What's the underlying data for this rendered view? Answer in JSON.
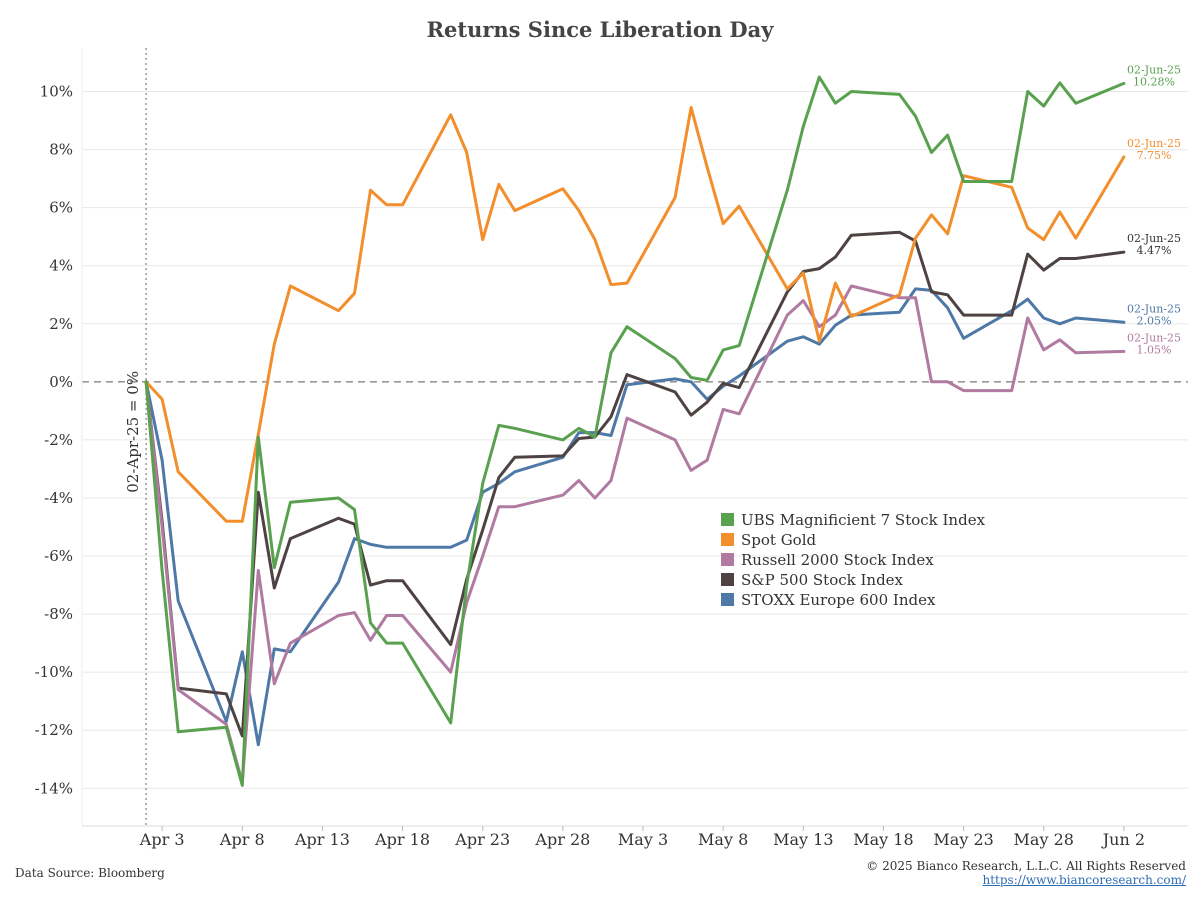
{
  "chart_data": {
    "type": "line",
    "title": "Returns Since Liberation Day",
    "baseline_label": "02-Apr-25 = 0%",
    "y_ticks": [
      "10%",
      "8%",
      "6%",
      "4%",
      "2%",
      "0%",
      "-2%",
      "-4%",
      "-6%",
      "-8%",
      "-10%",
      "-12%",
      "-14%"
    ],
    "y_tick_values": [
      10,
      8,
      6,
      4,
      2,
      0,
      -2,
      -4,
      -6,
      -8,
      -10,
      -12,
      -14
    ],
    "ylim": [
      -15.3,
      11.5
    ],
    "x_ticks": [
      "Apr 3",
      "Apr 8",
      "Apr 13",
      "Apr 18",
      "Apr 23",
      "Apr 28",
      "May 3",
      "May 8",
      "May 13",
      "May 18",
      "May 23",
      "May 28",
      "Jun 2"
    ],
    "x_tick_days": [
      1,
      6,
      11,
      16,
      21,
      26,
      31,
      36,
      41,
      46,
      51,
      56,
      61
    ],
    "x_unit": "days from 02-Apr-25",
    "xlim": [
      -4,
      65
    ],
    "x": [
      0,
      1,
      2,
      5,
      6,
      7,
      8,
      9,
      12,
      13,
      14,
      15,
      16,
      19,
      20,
      21,
      22,
      23,
      26,
      27,
      28,
      29,
      30,
      33,
      34,
      35,
      36,
      37,
      40,
      41,
      42,
      43,
      44,
      47,
      48,
      49,
      50,
      51,
      54,
      55,
      56,
      57,
      58,
      61
    ],
    "series": [
      {
        "name": "UBS Magnificient 7 Stock Index",
        "color": "#59a14f",
        "end_label": "02-Jun-25",
        "end_value": "10.28%",
        "values": [
          0,
          -6.5,
          -12.05,
          -11.9,
          -13.9,
          -1.9,
          -6.4,
          -4.15,
          -4.0,
          -4.4,
          -8.3,
          -9.0,
          -9.0,
          -11.75,
          -7.0,
          -3.5,
          -1.5,
          -1.6,
          -2.0,
          -1.6,
          -1.9,
          1.0,
          1.9,
          0.8,
          0.15,
          0.05,
          1.1,
          1.25,
          6.6,
          8.8,
          10.5,
          9.6,
          10.0,
          9.9,
          9.15,
          7.9,
          8.5,
          6.9,
          6.9,
          10.0,
          9.5,
          10.3,
          9.6,
          10.28
        ]
      },
      {
        "name": "Spot Gold",
        "color": "#f28e2b",
        "end_label": "02-Jun-25",
        "end_value": "7.75%",
        "values": [
          0,
          -0.6,
          -3.1,
          -4.8,
          -4.8,
          -1.8,
          1.3,
          3.3,
          2.45,
          3.05,
          6.6,
          6.1,
          6.1,
          9.2,
          7.9,
          4.9,
          6.8,
          5.9,
          6.65,
          5.9,
          4.9,
          3.35,
          3.4,
          6.35,
          9.45,
          7.4,
          5.45,
          6.05,
          3.2,
          3.75,
          1.4,
          3.4,
          2.25,
          3.0,
          4.95,
          5.75,
          5.1,
          7.1,
          6.7,
          5.3,
          4.9,
          5.85,
          4.95,
          7.75
        ]
      },
      {
        "name": "Russell 2000 Stock Index",
        "color": "#b07aa1",
        "end_label": "02-Jun-25",
        "end_value": "1.05%",
        "values": [
          0,
          -5.0,
          -10.6,
          -11.8,
          -13.8,
          -6.5,
          -10.4,
          -9.0,
          -8.05,
          -7.95,
          -8.9,
          -8.05,
          -8.05,
          -10.0,
          -7.6,
          -6.0,
          -4.3,
          -4.3,
          -3.9,
          -3.4,
          -4.0,
          -3.4,
          -1.25,
          -2.0,
          -3.05,
          -2.7,
          -0.95,
          -1.1,
          2.3,
          2.8,
          1.9,
          2.3,
          3.3,
          2.9,
          2.9,
          0.0,
          0.0,
          -0.3,
          -0.3,
          2.2,
          1.1,
          1.45,
          1.0,
          1.05
        ]
      },
      {
        "name": "S&P 500 Stock Index",
        "color": "#4e4342",
        "end_label": "02-Jun-25",
        "end_value": "4.47%",
        "values": [
          0,
          -4.8,
          -10.55,
          -10.75,
          -12.2,
          -3.8,
          -7.1,
          -5.4,
          -4.7,
          -4.9,
          -7.0,
          -6.85,
          -6.85,
          -9.05,
          -6.8,
          -5.1,
          -3.3,
          -2.6,
          -2.55,
          -1.95,
          -1.9,
          -1.2,
          0.25,
          -0.35,
          -1.15,
          -0.7,
          -0.05,
          -0.2,
          3.1,
          3.8,
          3.9,
          4.3,
          5.05,
          5.15,
          4.85,
          3.1,
          3.0,
          2.3,
          2.3,
          4.4,
          3.85,
          4.25,
          4.25,
          4.47
        ]
      },
      {
        "name": "STOXX Europe 600 Index",
        "color": "#4e79a7",
        "end_label": "02-Jun-25",
        "end_value": "2.05%",
        "values": [
          0,
          -2.7,
          -7.55,
          -11.7,
          -9.3,
          -12.5,
          -9.2,
          -9.3,
          -6.9,
          -5.4,
          -5.6,
          -5.7,
          -5.7,
          -5.7,
          -5.45,
          -3.8,
          -3.5,
          -3.1,
          -2.6,
          -1.75,
          -1.75,
          -1.85,
          -0.1,
          0.1,
          0.0,
          -0.6,
          -0.15,
          0.2,
          1.4,
          1.55,
          1.3,
          1.95,
          2.3,
          2.4,
          3.2,
          3.15,
          2.55,
          1.5,
          2.45,
          2.85,
          2.2,
          2.0,
          2.2,
          2.05
        ]
      }
    ],
    "legend_position": "center-right",
    "grid": "horizontal"
  },
  "footer": {
    "source": "Data Source: Bloomberg",
    "copyright": "© 2025 Bianco Research, L.L.C. All Rights Reserved",
    "url": "https://www.biancoresearch.com/"
  }
}
